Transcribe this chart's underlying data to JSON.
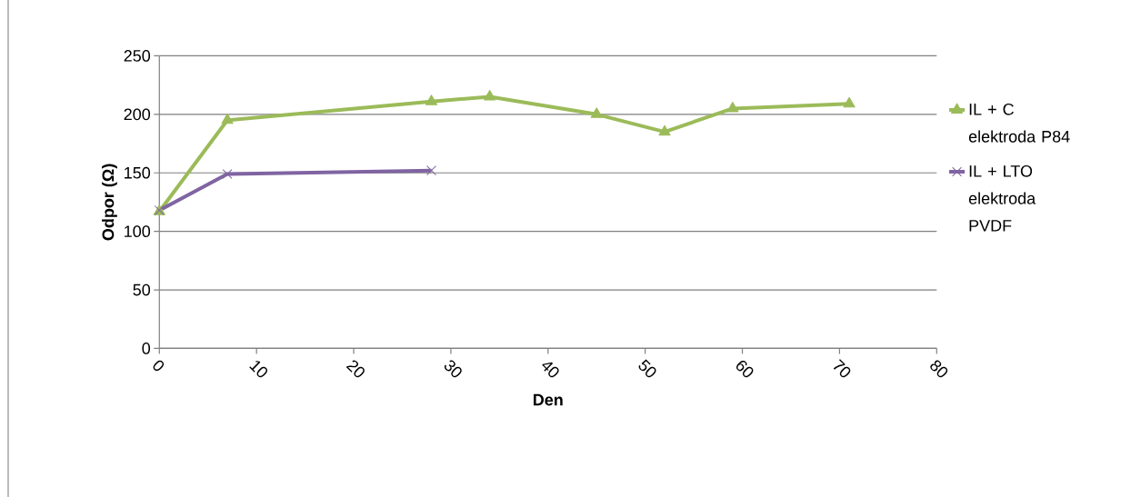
{
  "chart_data": {
    "type": "line",
    "xlabel": "Den",
    "ylabel": "Odpor (Ω)",
    "xlim": [
      0,
      80
    ],
    "xticks": [
      0,
      10,
      20,
      30,
      40,
      50,
      60,
      70,
      80
    ],
    "ylim": [
      0,
      250
    ],
    "yticks": [
      0,
      50,
      100,
      150,
      200,
      250
    ],
    "grid": "y",
    "legend": "right",
    "line_style": "solid",
    "series": [
      {
        "name": "IL + C elektroda P84",
        "color": "#9bbb59",
        "marker": "triangle",
        "x": [
          0,
          7,
          28,
          34,
          45,
          52,
          59,
          71
        ],
        "values": [
          117,
          195,
          211,
          215,
          200,
          185,
          205,
          209
        ]
      },
      {
        "name": "IL + LTO elektroda PVDF",
        "color": "#8064a2",
        "marker": "cross",
        "x": [
          0,
          7,
          28
        ],
        "values": [
          118,
          149,
          152
        ]
      }
    ]
  }
}
